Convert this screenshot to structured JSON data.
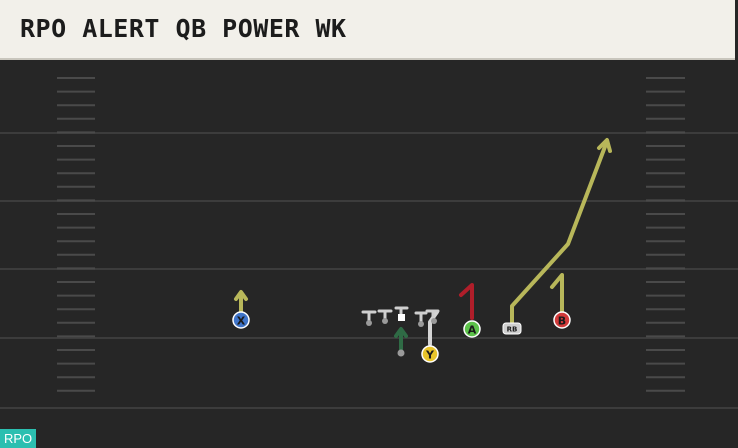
{
  "play": {
    "title": "RPO ALERT QB POWER WK",
    "tag": "RPO"
  },
  "colors": {
    "field": "#262626",
    "yard_line": "#3c3c3c",
    "hash": "#4a4a4a",
    "route_yellow": "#b8b75a",
    "route_red": "#b01e2a",
    "route_green": "#2f6b45",
    "route_white": "#d5d5d5",
    "tag_bg": "#2bbfb0"
  },
  "players": {
    "x": {
      "label": "X",
      "color": "#3f74c8"
    },
    "a": {
      "label": "A",
      "color": "#5cc24a"
    },
    "b": {
      "label": "B",
      "color": "#d13a3a"
    },
    "y": {
      "label": "Y",
      "color": "#e8c42a"
    },
    "rb": {
      "label": "RB",
      "color": "#cfcfcf"
    }
  }
}
